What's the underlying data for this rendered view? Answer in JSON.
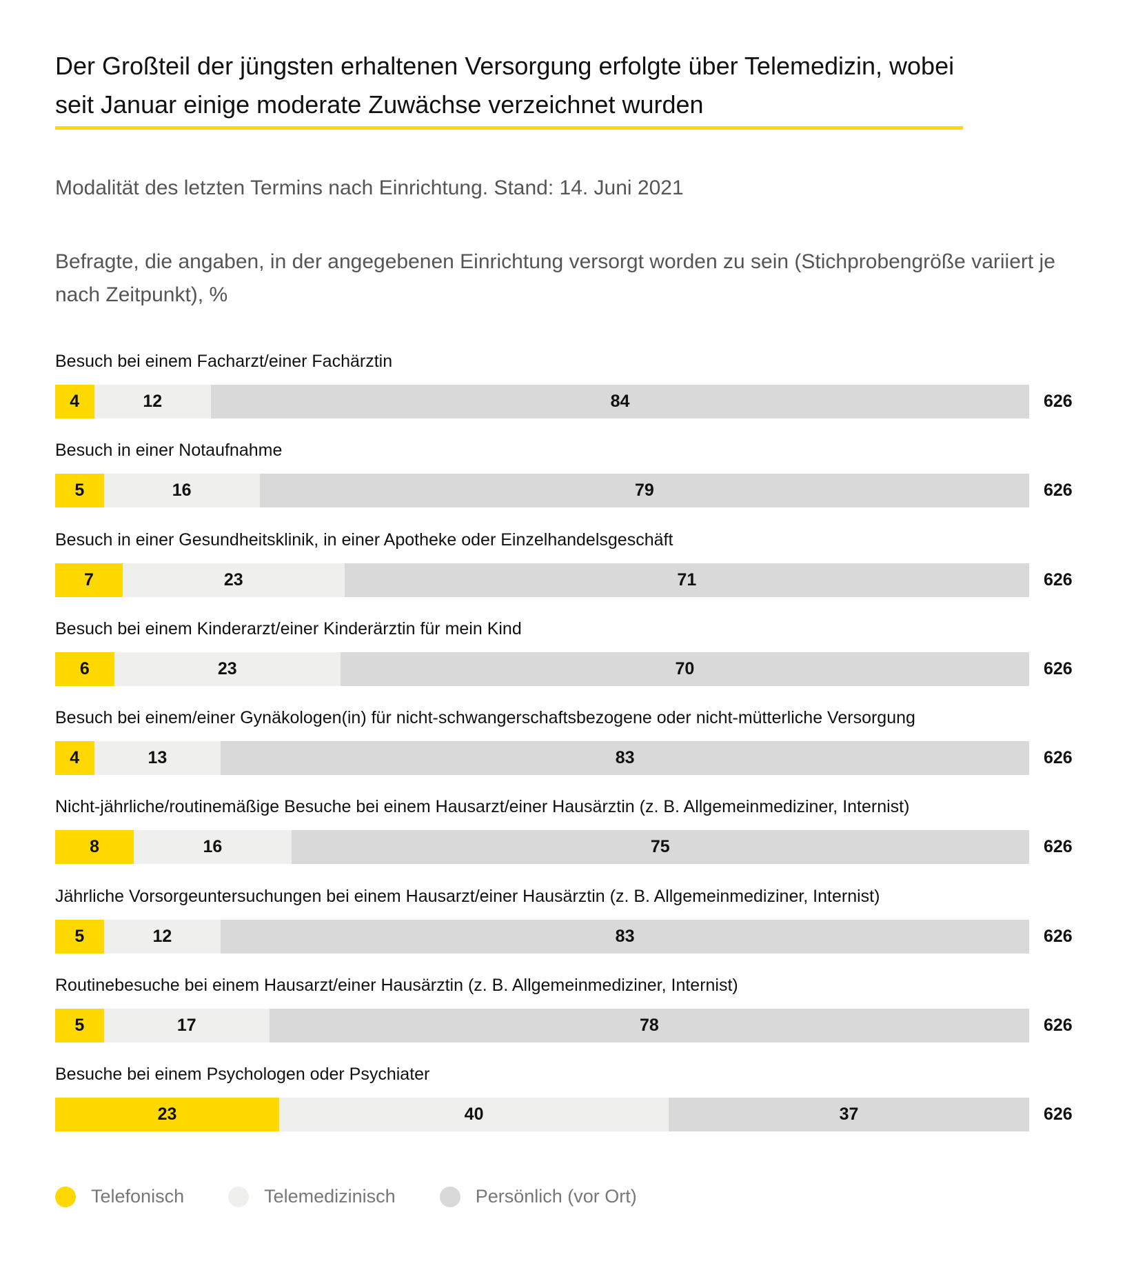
{
  "title": "Der Großteil der jüngsten erhaltenen Versorgung erfolgte über Telemedizin, wobei seit Januar einige moderate Zuwächse verzeichnet wurden",
  "subtitle": "Modalität des letzten Termins nach Einrichtung. Stand: 14. Juni 2021",
  "description": "Befragte, die angaben, in der angegebenen Einrichtung versorgt worden zu sein (Stichprobengröße variiert je nach Zeitpunkt), %",
  "chart_data": {
    "type": "bar",
    "orientation": "horizontal-stacked",
    "categories": [
      "Besuch bei einem Facharzt/einer Fachärztin",
      "Besuch in einer Notaufnahme",
      "Besuch in einer Gesundheitsklinik, in einer Apotheke oder Einzelhandelsgeschäft",
      "Besuch bei einem Kinderarzt/einer Kinderärztin für mein Kind",
      "Besuch bei einem/einer Gynäkologen(in) für nicht-schwangerschaftsbezogene oder nicht-mütterliche Versorgung",
      "Nicht-jährliche/routinemäßige Besuche bei einem Hausarzt/einer Hausärztin (z. B. Allgemeinmediziner, Internist)",
      "Jährliche Vorsorgeuntersuchungen bei einem Hausarzt/einer Hausärztin (z. B. Allgemeinmediziner, Internist)",
      "Routinebesuche bei einem Hausarzt/einer Hausärztin (z. B. Allgemeinmediziner, Internist)",
      "Besuche bei einem Psychologen oder Psychiater"
    ],
    "series": [
      {
        "name": "Telefonisch",
        "color": "#ffd800",
        "values": [
          4,
          5,
          7,
          6,
          4,
          8,
          5,
          5,
          23
        ]
      },
      {
        "name": "Telemedizinisch",
        "color": "#efefed",
        "values": [
          12,
          16,
          23,
          23,
          13,
          16,
          12,
          17,
          40
        ]
      },
      {
        "name": "Persönlich (vor Ort)",
        "color": "#d9d9d9",
        "values": [
          84,
          79,
          71,
          70,
          83,
          75,
          83,
          78,
          37
        ]
      }
    ],
    "sample_sizes": [
      "626",
      "626",
      "626",
      "626",
      "626",
      "626",
      "626",
      "626",
      "626"
    ],
    "unit": "%",
    "legend_position": "bottom-left",
    "grid": false
  }
}
